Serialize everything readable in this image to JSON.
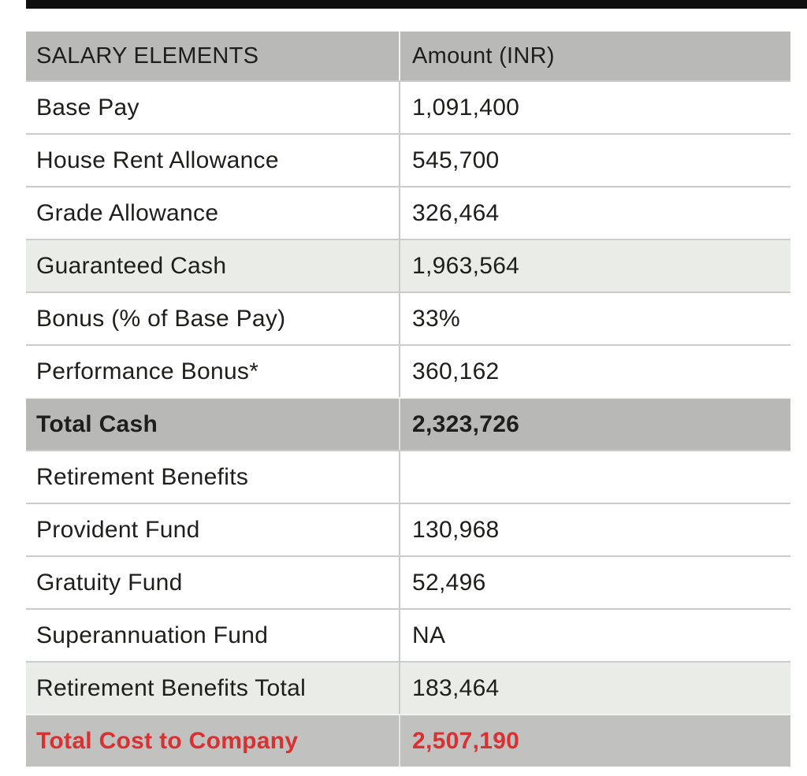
{
  "top_bar": {
    "color": "#0f0f0f"
  },
  "table": {
    "columns": {
      "element": "SALARY ELEMENTS",
      "amount": "Amount (INR)"
    },
    "rows": [
      {
        "label": "Base Pay",
        "value": "1,091,400",
        "style": "normal"
      },
      {
        "label": "House Rent Allowance",
        "value": "545,700",
        "style": "normal"
      },
      {
        "label": "Grade Allowance",
        "value": "326,464",
        "style": "normal"
      },
      {
        "label": "Guaranteed Cash",
        "value": "1,963,564",
        "style": "subtotal"
      },
      {
        "label": "Bonus (% of Base Pay)",
        "value": "33%",
        "style": "normal"
      },
      {
        "label": "Performance Bonus*",
        "value": "360,162",
        "style": "normal"
      },
      {
        "label": "Total Cash",
        "value": "2,323,726",
        "style": "total"
      },
      {
        "label": "Retirement Benefits",
        "value": "",
        "style": "normal"
      },
      {
        "label": "Provident Fund",
        "value": "130,968",
        "style": "normal"
      },
      {
        "label": "Gratuity Fund",
        "value": "52,496",
        "style": "normal"
      },
      {
        "label": "Superannuation Fund",
        "value": "NA",
        "style": "normal"
      },
      {
        "label": "Retirement Benefits Total",
        "value": "183,464",
        "style": "subtotal"
      },
      {
        "label": "Total Cost to Company",
        "value": "2,507,190",
        "style": "grand-total"
      }
    ],
    "colors": {
      "header_bg": "#b9b9b7",
      "total_row_bg": "#b8b8b6",
      "subtotal_row_bg": "#e9ece7",
      "grand_total_row_bg": "#c1c1bf",
      "grand_total_text": "#d93131",
      "row_divider": "#cbcbc9",
      "text": "#1e1e1c"
    }
  },
  "chart_data": {
    "type": "table",
    "title": "Salary Elements",
    "columns": [
      "SALARY ELEMENTS",
      "Amount (INR)"
    ],
    "rows": [
      [
        "Base Pay",
        "1,091,400"
      ],
      [
        "House Rent Allowance",
        "545,700"
      ],
      [
        "Grade Allowance",
        "326,464"
      ],
      [
        "Guaranteed Cash",
        "1,963,564"
      ],
      [
        "Bonus (% of Base Pay)",
        "33%"
      ],
      [
        "Performance Bonus*",
        "360,162"
      ],
      [
        "Total Cash",
        "2,323,726"
      ],
      [
        "Retirement Benefits",
        ""
      ],
      [
        "Provident Fund",
        "130,968"
      ],
      [
        "Gratuity Fund",
        "52,496"
      ],
      [
        "Superannuation Fund",
        "NA"
      ],
      [
        "Retirement Benefits Total",
        "183,464"
      ],
      [
        "Total Cost to Company",
        "2,507,190"
      ]
    ]
  }
}
